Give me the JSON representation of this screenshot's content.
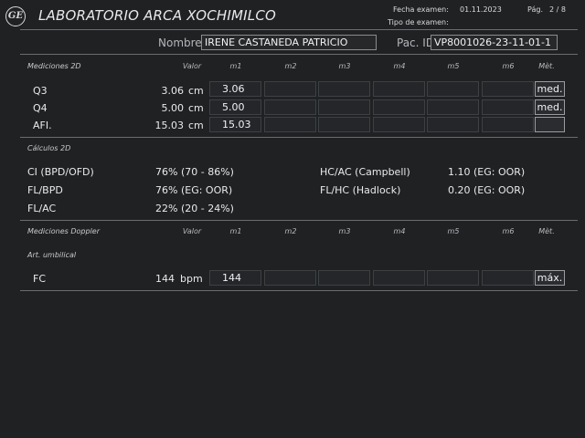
{
  "header": {
    "logo_text": "GE",
    "title": "LABORATORIO ARCA XOCHIMILCO",
    "exam_date_label": "Fecha examen:",
    "exam_date": "01.11.2023",
    "exam_type_label": "Tipo de examen:",
    "page_label": "Pág.",
    "page_value": "2 / 8"
  },
  "patient": {
    "name_label": "Nombre",
    "name": "IRENE CASTANEDA PATRICIO",
    "id_label": "Pac. ID",
    "id": "VP8001026-23-11-01-1"
  },
  "columns": {
    "valor": "Valor",
    "m": [
      "m1",
      "m2",
      "m3",
      "m4",
      "m5",
      "m6"
    ],
    "met": "Mèt."
  },
  "measurements_2d": {
    "section_label": "Mediciones 2D",
    "rows": [
      {
        "label": "Q3",
        "value": "3.06",
        "unit": "cm",
        "m1": "3.06",
        "method": "med."
      },
      {
        "label": "Q4",
        "value": "5.00",
        "unit": "cm",
        "m1": "5.00",
        "method": "med."
      },
      {
        "label": "AFI.",
        "value": "15.03",
        "unit": "cm",
        "m1": "15.03",
        "method": ""
      }
    ]
  },
  "calculations_2d": {
    "section_label": "Cálculos 2D",
    "left": [
      {
        "label": "CI (BPD/OFD)",
        "value": "76% (70 - 86%)"
      },
      {
        "label": "FL/BPD",
        "value": "76% (EG: OOR)"
      },
      {
        "label": "FL/AC",
        "value": "22% (20 - 24%)"
      }
    ],
    "right": [
      {
        "label": "HC/AC (Campbell)",
        "value": "1.10 (EG: OOR)"
      },
      {
        "label": "FL/HC (Hadlock)",
        "value": "0.20 (EG: OOR)"
      }
    ]
  },
  "doppler": {
    "section_label": "Mediciones Doppler",
    "subsection_label": "Art. umbilical",
    "rows": [
      {
        "label": "FC",
        "value": "144",
        "unit": "bpm",
        "m1": "144",
        "method": "máx."
      }
    ]
  }
}
